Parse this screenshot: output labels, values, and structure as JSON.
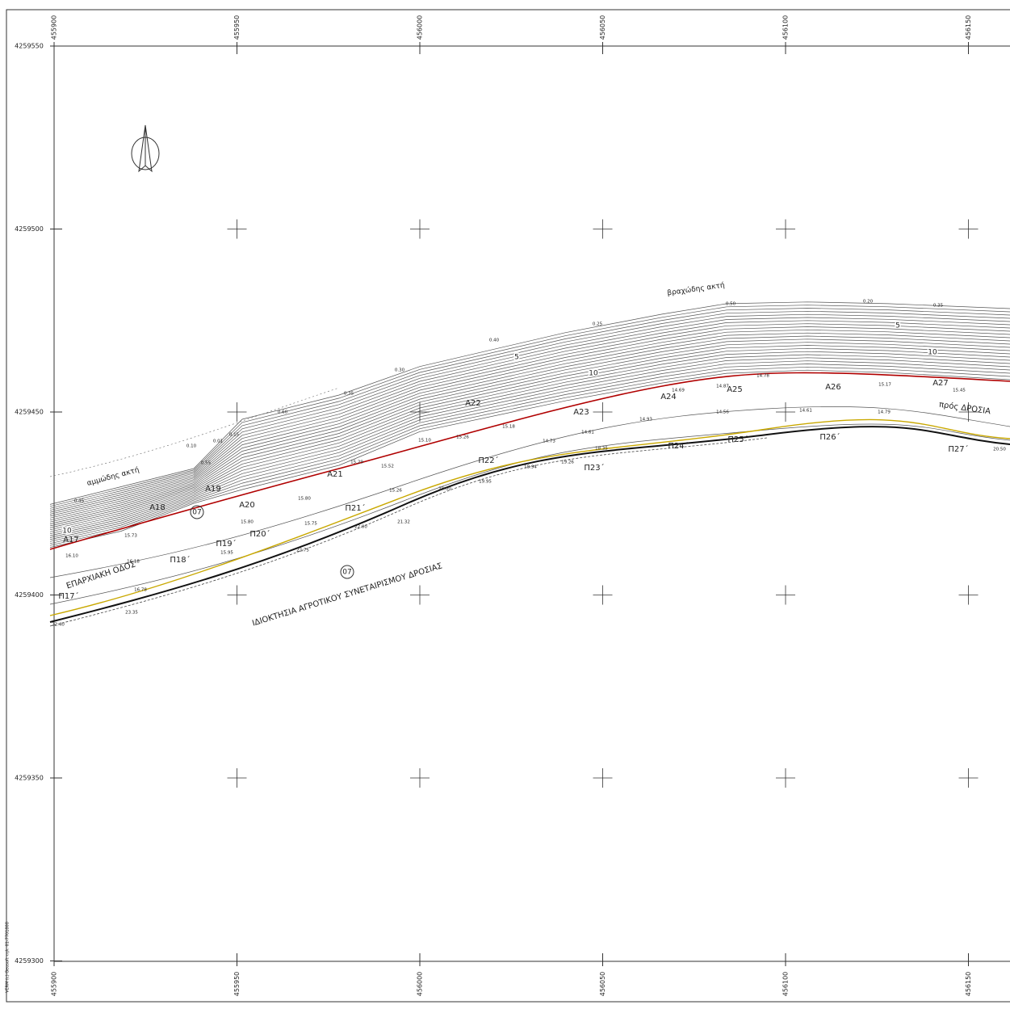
{
  "map": {
    "eastings": [
      455900,
      455950,
      456000,
      456050,
      456100,
      456150
    ],
    "northings": [
      4259550,
      4259500,
      4259450,
      4259400,
      4259350,
      4259300
    ],
    "place_labels": [
      "αμμώδης ακτή",
      "βραχώδης ακτή",
      "ΕΠΑΡΧΙΑΚΗ ΟΔΟΣ",
      "ΙΔΙΟΚΤΗΣΙΑ ΑΓΡΟΤΙΚΟΥ ΣΥΝΕΤΑΙΡΙΣΜΟΥ ΔΡΟΣΙΑΣ",
      "πρός ΔΡΟΣΙΑ"
    ],
    "parcels": [
      "07",
      "07"
    ],
    "points": [
      "A17",
      "A18",
      "A19",
      "A20",
      "A21",
      "A22",
      "A23",
      "A24",
      "A25",
      "A26",
      "A27",
      "Π17΄",
      "Π18΄",
      "Π19΄",
      "Π20΄",
      "Π21΄",
      "Π22΄",
      "Π23΄",
      "Π24΄",
      "Π25΄",
      "Π26΄",
      "Π27΄"
    ],
    "contour_labels": [
      "10",
      "5",
      "10",
      "5",
      "10"
    ],
    "spot_heights": [
      "0.45",
      "0.10",
      "0.01",
      "0.55",
      "0.15",
      "0.60",
      "0.30",
      "0.35",
      "0.40",
      "0.25",
      "0.50",
      "0.20",
      "0.35",
      "16.10",
      "15.73",
      "16.18",
      "16.78",
      "23.35",
      "22.40",
      "15.80",
      "15.95",
      "15.80",
      "15.75",
      "22.75",
      "22.00",
      "21.32",
      "15.26",
      "15.52",
      "15.29",
      "15.10",
      "15.26",
      "15.18",
      "20.00",
      "19.95",
      "18.94",
      "19.26",
      "18.35",
      "14.73",
      "14.61",
      "14.93",
      "14.69",
      "14.87",
      "14.78",
      "14.56",
      "14.61",
      "14.79",
      "15.17",
      "15.45",
      "20.50"
    ],
    "credit": "VERM (c) Geosoft τηλ. 01-7701808"
  }
}
